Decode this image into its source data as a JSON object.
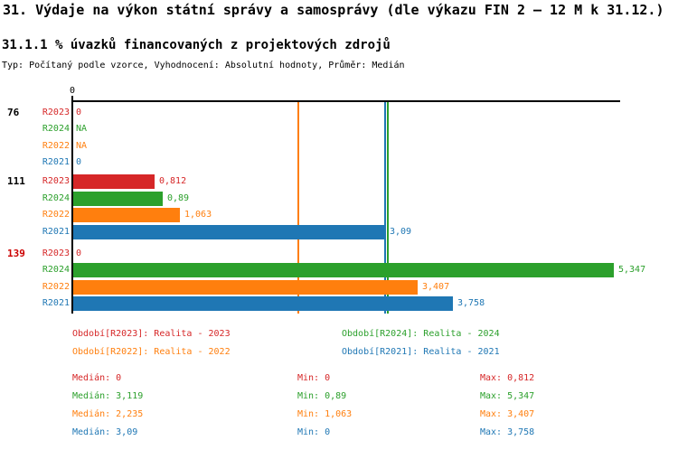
{
  "header": {
    "title": "31. Výdaje na výkon státní správy a samosprávy (dle výkazu FIN 2 – 12 M k 31.12.)",
    "subtitle": "31.1.1 % úvazků financovaných z projektových zdrojů",
    "meta": "Typ: Počítaný podle vzorce, Vyhodnocení: Absolutní hodnoty, Průměr: Medián"
  },
  "colors": {
    "r2023": "#d62728",
    "r2024": "#2ca02c",
    "r2022": "#ff7f0e",
    "r2021": "#1f77b4",
    "axis": "#000000",
    "highlight_group": "#cc0000"
  },
  "chart_data": {
    "type": "bar",
    "orientation": "horizontal",
    "title": "31.1.1 % úvazků financovaných z projektových zdrojů",
    "x_axis": {
      "origin_label": "0",
      "min": 0,
      "max_extent": 5.41,
      "grid": false
    },
    "series": [
      {
        "name": "R2023",
        "legend": "Období[R2023]: Realita - 2023",
        "color": "#d62728",
        "median": 0,
        "min": 0,
        "max": 0.812
      },
      {
        "name": "R2024",
        "legend": "Období[R2024]: Realita - 2024",
        "color": "#2ca02c",
        "median": 3.119,
        "min": 0.89,
        "max": 5.347
      },
      {
        "name": "R2022",
        "legend": "Období[R2022]: Realita - 2022",
        "color": "#ff7f0e",
        "median": 2.235,
        "min": 1.063,
        "max": 3.407
      },
      {
        "name": "R2021",
        "legend": "Období[R2021]: Realita - 2021",
        "color": "#1f77b4",
        "median": 3.09,
        "min": 0,
        "max": 3.758
      }
    ],
    "groups": [
      {
        "label": "76",
        "label_color": "#000000",
        "rows": [
          {
            "series": "R2023",
            "value": 0,
            "display": "0"
          },
          {
            "series": "R2024",
            "value": null,
            "display": "NA"
          },
          {
            "series": "R2022",
            "value": null,
            "display": "NA"
          },
          {
            "series": "R2021",
            "value": 0,
            "display": "0"
          }
        ]
      },
      {
        "label": "111",
        "label_color": "#000000",
        "rows": [
          {
            "series": "R2023",
            "value": 0.812,
            "display": "0,812"
          },
          {
            "series": "R2024",
            "value": 0.89,
            "display": "0,89"
          },
          {
            "series": "R2022",
            "value": 1.063,
            "display": "1,063"
          },
          {
            "series": "R2021",
            "value": 3.09,
            "display": "3,09"
          }
        ]
      },
      {
        "label": "139",
        "label_color": "#cc0000",
        "rows": [
          {
            "series": "R2023",
            "value": 0,
            "display": "0"
          },
          {
            "series": "R2024",
            "value": 5.347,
            "display": "5,347"
          },
          {
            "series": "R2022",
            "value": 3.407,
            "display": "3,407"
          },
          {
            "series": "R2021",
            "value": 3.758,
            "display": "3,758"
          }
        ]
      }
    ],
    "median_lines": [
      {
        "series": "R2022",
        "value": 2.235,
        "color": "#ff7f0e"
      },
      {
        "series": "R2021",
        "value": 3.09,
        "color": "#1f77b4"
      },
      {
        "series": "R2024",
        "value": 3.119,
        "color": "#2ca02c"
      }
    ]
  },
  "legend": [
    {
      "series": "R2023",
      "text": "Období[R2023]: Realita - 2023",
      "color": "#d62728",
      "col": 0,
      "row": 0
    },
    {
      "series": "R2024",
      "text": "Období[R2024]: Realita - 2024",
      "color": "#2ca02c",
      "col": 1,
      "row": 0
    },
    {
      "series": "R2022",
      "text": "Období[R2022]: Realita - 2022",
      "color": "#ff7f0e",
      "col": 0,
      "row": 1
    },
    {
      "series": "R2021",
      "text": "Období[R2021]: Realita - 2021",
      "color": "#1f77b4",
      "col": 1,
      "row": 1
    }
  ],
  "stats": {
    "labels": {
      "median": "Medián: ",
      "min": "Min: ",
      "max": "Max: "
    },
    "rows": [
      {
        "series": "R2023",
        "color": "#d62728",
        "median": "0",
        "min": "0",
        "max": "0,812"
      },
      {
        "series": "R2024",
        "color": "#2ca02c",
        "median": "3,119",
        "min": "0,89",
        "max": "5,347"
      },
      {
        "series": "R2022",
        "color": "#ff7f0e",
        "median": "2,235",
        "min": "1,063",
        "max": "3,407"
      },
      {
        "series": "R2021",
        "color": "#1f77b4",
        "median": "3,09",
        "min": "0",
        "max": "3,758"
      }
    ]
  }
}
